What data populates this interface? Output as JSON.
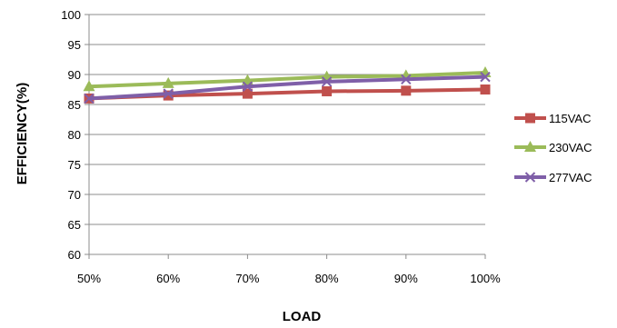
{
  "chart_data": {
    "type": "line",
    "xlabel": "LOAD",
    "ylabel": "EFFICIENCY(%)",
    "categories": [
      "50%",
      "60%",
      "70%",
      "80%",
      "90%",
      "100%"
    ],
    "ylim": [
      60,
      100
    ],
    "yticks": [
      60,
      65,
      70,
      75,
      80,
      85,
      90,
      95,
      100
    ],
    "grid": true,
    "legend_position": "right",
    "series": [
      {
        "name": "115VAC",
        "values": [
          86.0,
          86.5,
          86.8,
          87.2,
          87.3,
          87.5
        ],
        "color": "#c0504d",
        "marker": "square"
      },
      {
        "name": "230VAC",
        "values": [
          88.0,
          88.5,
          89.0,
          89.6,
          89.8,
          90.3
        ],
        "color": "#9bbb59",
        "marker": "triangle"
      },
      {
        "name": "277VAC",
        "values": [
          86.0,
          86.8,
          88.0,
          88.8,
          89.2,
          89.6
        ],
        "color": "#7f5fa8",
        "marker": "x"
      }
    ]
  }
}
